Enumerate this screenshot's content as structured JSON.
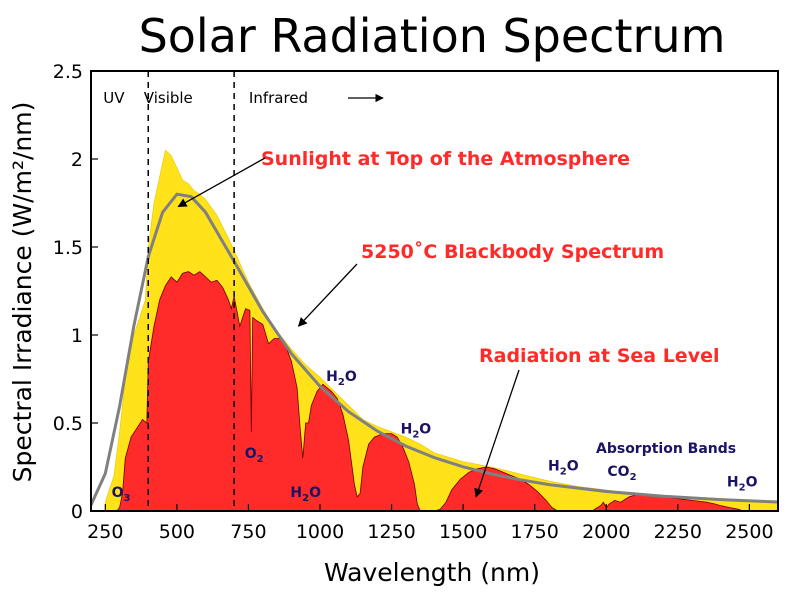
{
  "chart_data": {
    "type": "area",
    "title": "Solar Radiation Spectrum",
    "xlabel": "Wavelength (nm)",
    "ylabel": "Spectral Irradiance (W/m²/nm)",
    "xlim": [
      200,
      2600
    ],
    "ylim": [
      0,
      2.5
    ],
    "xticks": [
      250,
      500,
      750,
      1000,
      1250,
      1500,
      1750,
      2000,
      2250,
      2500
    ],
    "yticks": [
      0,
      0.5,
      1,
      1.5,
      2,
      2.5
    ],
    "grid": false,
    "colors": {
      "top_of_atmosphere": "#ffe21a",
      "sea_level": "#ff2a2a",
      "blackbody": "#808080",
      "absorption_text": "#1b1464",
      "annotation_text": "#ff2a2a"
    },
    "regions": [
      {
        "label": "UV",
        "boundary": 400
      },
      {
        "label": "Visible",
        "boundary": 700
      },
      {
        "label": "Infrared"
      }
    ],
    "series": [
      {
        "name": "Sunlight at Top of the Atmosphere",
        "style": "filled-area",
        "points": [
          [
            250,
            0.05
          ],
          [
            280,
            0.2
          ],
          [
            300,
            0.45
          ],
          [
            320,
            0.75
          ],
          [
            350,
            1.0
          ],
          [
            370,
            1.1
          ],
          [
            390,
            1.2
          ],
          [
            400,
            1.5
          ],
          [
            420,
            1.75
          ],
          [
            440,
            1.9
          ],
          [
            460,
            2.05
          ],
          [
            480,
            2.02
          ],
          [
            500,
            1.95
          ],
          [
            520,
            1.88
          ],
          [
            540,
            1.86
          ],
          [
            560,
            1.82
          ],
          [
            580,
            1.8
          ],
          [
            600,
            1.77
          ],
          [
            640,
            1.68
          ],
          [
            680,
            1.55
          ],
          [
            700,
            1.48
          ],
          [
            750,
            1.3
          ],
          [
            800,
            1.15
          ],
          [
            850,
            1.02
          ],
          [
            900,
            0.92
          ],
          [
            950,
            0.83
          ],
          [
            1000,
            0.76
          ],
          [
            1050,
            0.68
          ],
          [
            1100,
            0.6
          ],
          [
            1150,
            0.52
          ],
          [
            1200,
            0.48
          ],
          [
            1250,
            0.45
          ],
          [
            1300,
            0.42
          ],
          [
            1350,
            0.38
          ],
          [
            1400,
            0.33
          ],
          [
            1500,
            0.28
          ],
          [
            1600,
            0.25
          ],
          [
            1700,
            0.21
          ],
          [
            1800,
            0.17
          ],
          [
            1900,
            0.14
          ],
          [
            2000,
            0.12
          ],
          [
            2100,
            0.1
          ],
          [
            2200,
            0.09
          ],
          [
            2300,
            0.08
          ],
          [
            2400,
            0.07
          ],
          [
            2500,
            0.06
          ],
          [
            2600,
            0.05
          ]
        ]
      },
      {
        "name": "Radiation at Sea Level",
        "style": "filled-area",
        "points": [
          [
            290,
            0
          ],
          [
            300,
            0.02
          ],
          [
            310,
            0.1
          ],
          [
            320,
            0.3
          ],
          [
            340,
            0.42
          ],
          [
            360,
            0.47
          ],
          [
            380,
            0.52
          ],
          [
            395,
            0.5
          ],
          [
            400,
            0.85
          ],
          [
            420,
            1.05
          ],
          [
            440,
            1.2
          ],
          [
            460,
            1.28
          ],
          [
            480,
            1.33
          ],
          [
            500,
            1.3
          ],
          [
            520,
            1.35
          ],
          [
            540,
            1.36
          ],
          [
            560,
            1.34
          ],
          [
            580,
            1.36
          ],
          [
            600,
            1.33
          ],
          [
            620,
            1.3
          ],
          [
            640,
            1.31
          ],
          [
            660,
            1.27
          ],
          [
            680,
            1.2
          ],
          [
            690,
            1.15
          ],
          [
            700,
            1.22
          ],
          [
            720,
            1.05
          ],
          [
            730,
            1.1
          ],
          [
            740,
            1.15
          ],
          [
            755,
            1.14
          ],
          [
            760,
            0.45
          ],
          [
            765,
            1.1
          ],
          [
            780,
            1.08
          ],
          [
            800,
            1.06
          ],
          [
            820,
            0.95
          ],
          [
            840,
            0.98
          ],
          [
            860,
            0.98
          ],
          [
            880,
            0.94
          ],
          [
            900,
            0.85
          ],
          [
            920,
            0.7
          ],
          [
            930,
            0.48
          ],
          [
            940,
            0.3
          ],
          [
            950,
            0.5
          ],
          [
            960,
            0.5
          ],
          [
            970,
            0.6
          ],
          [
            990,
            0.68
          ],
          [
            1010,
            0.72
          ],
          [
            1040,
            0.68
          ],
          [
            1060,
            0.64
          ],
          [
            1080,
            0.55
          ],
          [
            1100,
            0.4
          ],
          [
            1120,
            0.15
          ],
          [
            1130,
            0.08
          ],
          [
            1140,
            0.1
          ],
          [
            1150,
            0.25
          ],
          [
            1170,
            0.38
          ],
          [
            1190,
            0.42
          ],
          [
            1220,
            0.44
          ],
          [
            1250,
            0.44
          ],
          [
            1270,
            0.42
          ],
          [
            1290,
            0.36
          ],
          [
            1310,
            0.28
          ],
          [
            1330,
            0.15
          ],
          [
            1340,
            0.04
          ],
          [
            1350,
            0
          ],
          [
            1400,
            0
          ],
          [
            1420,
            0.01
          ],
          [
            1440,
            0.05
          ],
          [
            1460,
            0.12
          ],
          [
            1490,
            0.18
          ],
          [
            1520,
            0.22
          ],
          [
            1550,
            0.24
          ],
          [
            1580,
            0.25
          ],
          [
            1610,
            0.24
          ],
          [
            1640,
            0.22
          ],
          [
            1670,
            0.2
          ],
          [
            1700,
            0.18
          ],
          [
            1730,
            0.15
          ],
          [
            1760,
            0.11
          ],
          [
            1790,
            0.06
          ],
          [
            1810,
            0.02
          ],
          [
            1830,
            0
          ],
          [
            1950,
            0
          ],
          [
            1980,
            0.03
          ],
          [
            1990,
            0.05
          ],
          [
            2000,
            0.02
          ],
          [
            2010,
            0.04
          ],
          [
            2030,
            0.06
          ],
          [
            2050,
            0.05
          ],
          [
            2080,
            0.08
          ],
          [
            2100,
            0.09
          ],
          [
            2150,
            0.09
          ],
          [
            2200,
            0.08
          ],
          [
            2250,
            0.07
          ],
          [
            2300,
            0.06
          ],
          [
            2350,
            0.05
          ],
          [
            2380,
            0.04
          ],
          [
            2400,
            0.03
          ],
          [
            2430,
            0.02
          ],
          [
            2460,
            0.01
          ],
          [
            2480,
            0
          ],
          [
            2600,
            0
          ]
        ]
      },
      {
        "name": "5250˚C Blackbody Spectrum",
        "style": "line",
        "points": [
          [
            200,
            0.034
          ],
          [
            250,
            0.213
          ],
          [
            300,
            0.595
          ],
          [
            350,
            1.053
          ],
          [
            400,
            1.446
          ],
          [
            450,
            1.697
          ],
          [
            500,
            1.8
          ],
          [
            550,
            1.786
          ],
          [
            600,
            1.698
          ],
          [
            700,
            1.418
          ],
          [
            800,
            1.133
          ],
          [
            900,
            0.894
          ],
          [
            1000,
            0.708
          ],
          [
            1100,
            0.564
          ],
          [
            1200,
            0.454
          ],
          [
            1300,
            0.369
          ],
          [
            1400,
            0.303
          ],
          [
            1500,
            0.251
          ],
          [
            1600,
            0.21
          ],
          [
            1700,
            0.177
          ],
          [
            1800,
            0.15
          ],
          [
            2000,
            0.111
          ],
          [
            2200,
            0.084
          ],
          [
            2400,
            0.065
          ],
          [
            2600,
            0.051
          ]
        ]
      }
    ],
    "annotations": [
      {
        "text": "Sunlight at Top of the Atmosphere",
        "arrow_to": [
          505,
          1.73
        ]
      },
      {
        "text": "5250˚C Blackbody Spectrum",
        "arrow_to": [
          925,
          1.05
        ]
      },
      {
        "text": "Radiation at Sea Level",
        "arrow_to": [
          1545,
          0.08
        ]
      }
    ],
    "absorption_bands": {
      "title": "Absorption Bands",
      "labels": [
        {
          "base": "O",
          "sub": "3",
          "x": 305,
          "y": 0.08
        },
        {
          "base": "O",
          "sub": "2",
          "x": 770,
          "y": 0.3
        },
        {
          "base": "H",
          "sub": "2",
          "tail": "O",
          "x": 950,
          "y": 0.08
        },
        {
          "base": "H",
          "sub": "2",
          "tail": "O",
          "x": 1075,
          "y": 0.74
        },
        {
          "base": "H",
          "sub": "2",
          "tail": "O",
          "x": 1335,
          "y": 0.44
        },
        {
          "base": "H",
          "sub": "2",
          "tail": "O",
          "x": 1850,
          "y": 0.23
        },
        {
          "base": "CO",
          "sub": "2",
          "x": 2055,
          "y": 0.2
        },
        {
          "base": "H",
          "sub": "2",
          "tail": "O",
          "x": 2475,
          "y": 0.14
        }
      ]
    }
  }
}
